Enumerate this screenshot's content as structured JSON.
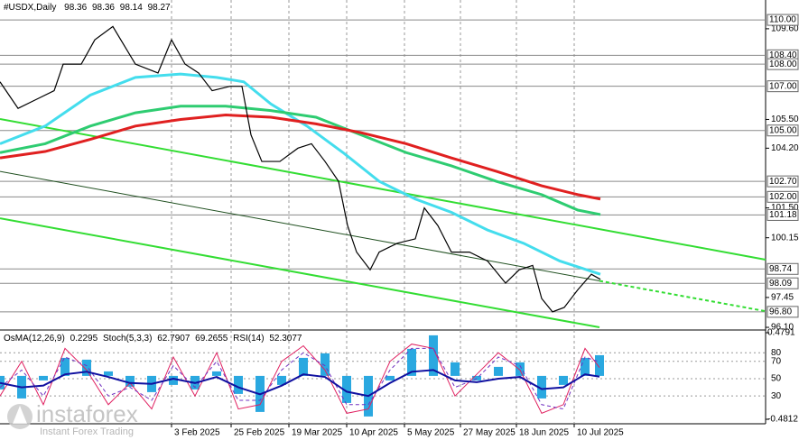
{
  "chart_data": {
    "type": "line",
    "title": "#USDX,Daily",
    "ohlc": [
      98.36,
      98.36,
      98.14,
      98.27
    ],
    "xlim": [
      0,
      212
    ],
    "xticks": [
      {
        "value": 47.5,
        "label": "3 Feb 2025"
      },
      {
        "value": 64,
        "label": "25 Feb 2025"
      },
      {
        "value": 80,
        "label": "19 Mar 2025"
      },
      {
        "value": 96,
        "label": "10 Apr 2025"
      },
      {
        "value": 112,
        "label": "5 May 2025"
      },
      {
        "value": 127.5,
        "label": "27 May 2025"
      },
      {
        "value": 143,
        "label": "18 Jun 2025"
      },
      {
        "value": 159,
        "label": "10 Jul 2025"
      }
    ],
    "ylim": [
      96.02,
      110.9
    ],
    "yticks": [
      {
        "value": 109.6,
        "label": "109.60"
      },
      {
        "value": 105.5,
        "label": "105.50"
      },
      {
        "value": 104.2,
        "label": "104.20"
      },
      {
        "value": 101.5,
        "label": "101.50"
      },
      {
        "value": 100.15,
        "label": "100.15"
      },
      {
        "value": 97.45,
        "label": "97.45"
      },
      {
        "value": 96.1,
        "label": "96.10"
      }
    ],
    "level_ticks": [
      {
        "value": 110,
        "label": "110.00"
      },
      {
        "value": 108.4,
        "label": "108.40"
      },
      {
        "value": 108,
        "label": "108.00"
      },
      {
        "value": 107,
        "label": "107.00"
      },
      {
        "value": 105,
        "label": "105.00"
      },
      {
        "value": 102.7,
        "label": "102.70"
      },
      {
        "value": 102,
        "label": "102.00"
      },
      {
        "value": 101.18,
        "label": "101.18"
      },
      {
        "value": 98.74,
        "label": "98.74"
      },
      {
        "value": 98.09,
        "label": "98.09"
      },
      {
        "value": 96.8,
        "label": "96.80"
      }
    ],
    "price": {
      "color": "#000000",
      "x": [
        0,
        5,
        10,
        15,
        17.5,
        22.5,
        26.25,
        31.25,
        37.5,
        43.75,
        47.5,
        51.25,
        55,
        58.75,
        63.75,
        67,
        69.5,
        72.5,
        77.5,
        82.5,
        86.25,
        90,
        93.75,
        96.25,
        98.75,
        102.5,
        105,
        110,
        115,
        117.5,
        121.25,
        125,
        130,
        135,
        140,
        143.75,
        147.5,
        150,
        153,
        156.25,
        160,
        163.75,
        166.25
      ],
      "values": [
        107.2,
        106.0,
        106.4,
        106.8,
        108.0,
        108.0,
        109.1,
        109.7,
        108.0,
        107.6,
        109.1,
        108.0,
        107.6,
        106.8,
        107.0,
        107.0,
        104.8,
        103.6,
        103.6,
        104.2,
        104.4,
        103.6,
        102.7,
        100.7,
        99.5,
        98.7,
        99.5,
        99.9,
        100.1,
        101.5,
        100.7,
        99.5,
        99.5,
        99.1,
        98.1,
        98.7,
        98.9,
        97.4,
        96.8,
        97.0,
        97.8,
        98.5,
        98.27
      ]
    },
    "moving_averages": [
      {
        "color": "#44dded",
        "x": [
          0,
          12.5,
          25,
          37.5,
          50,
          60,
          67.5,
          75,
          85,
          95,
          105,
          115,
          125,
          135,
          145,
          155,
          166.25
        ],
        "values": [
          104.4,
          105.2,
          106.6,
          107.4,
          107.55,
          107.4,
          107.2,
          106.2,
          105.2,
          104.0,
          102.7,
          101.9,
          101.3,
          100.5,
          99.9,
          99.1,
          98.5
        ]
      },
      {
        "color": "#2ecc71",
        "x": [
          0,
          12.5,
          25,
          37.5,
          50,
          62.5,
          75,
          87.5,
          100,
          112.5,
          125,
          137.5,
          150,
          160,
          166.25
        ],
        "values": [
          104.0,
          104.4,
          105.2,
          105.8,
          106.1,
          106.1,
          105.9,
          105.6,
          104.8,
          104.0,
          103.4,
          102.7,
          102.1,
          101.4,
          101.2
        ]
      },
      {
        "color": "#e02020",
        "x": [
          0,
          12.5,
          25,
          37.5,
          50,
          62.5,
          75,
          87.5,
          100,
          112.5,
          125,
          137.5,
          150,
          160,
          166.25
        ],
        "values": [
          103.76,
          104.05,
          104.6,
          105.2,
          105.5,
          105.7,
          105.6,
          105.3,
          104.9,
          104.4,
          103.76,
          103.15,
          102.5,
          102.1,
          101.9
        ]
      }
    ],
    "trendlines": [
      {
        "color": "#33dd33",
        "x": [
          0,
          212
        ],
        "y": [
          105.52,
          99.16
        ],
        "dash": false
      },
      {
        "color": "#33dd33",
        "x": [
          0,
          166
        ],
        "y": [
          101.03,
          96.1
        ],
        "dash": false
      },
      {
        "color": "#1f4f1f",
        "x": [
          0,
          166
        ],
        "y": [
          103.15,
          98.2
        ],
        "dash": false
      },
      {
        "color": "#33dd33",
        "x": [
          166,
          212
        ],
        "y": [
          98.2,
          96.83
        ],
        "dash": true
      }
    ],
    "indicator": {
      "osma_name": "OsMA(12,26,9)",
      "stoch_name": "Stoch(5,3,3)",
      "rsi_name": "RSI(14)",
      "x": [
        0,
        6,
        12,
        18,
        24,
        30,
        36,
        42,
        48,
        54,
        60,
        66,
        72,
        78,
        84,
        90,
        96,
        102,
        108,
        114,
        120,
        126,
        132,
        138,
        144,
        150,
        156,
        162,
        166
      ],
      "osma_lim": [
        -0.531,
        0.499
      ],
      "osc_lim": [
        -2.1,
        105.2
      ],
      "osma_ticks": [
        0.4791,
        -0.4812
      ],
      "osc_ticks": [
        80,
        70,
        50,
        30
      ],
      "osma": {
        "color": "#2aa8e0",
        "values": [
          -0.15,
          -0.25,
          -0.05,
          0.2,
          0.18,
          0.05,
          -0.12,
          -0.18,
          -0.1,
          -0.15,
          0.05,
          -0.2,
          -0.4,
          -0.1,
          0.2,
          0.25,
          -0.3,
          -0.45,
          -0.05,
          0.3,
          0.45,
          0.15,
          -0.05,
          0.1,
          0.15,
          -0.25,
          -0.1,
          0.2,
          0.2295
        ]
      },
      "stoch_main": {
        "color": "#e02060",
        "values": [
          30,
          70,
          20,
          85,
          60,
          20,
          45,
          15,
          75,
          30,
          80,
          15,
          20,
          70,
          88,
          60,
          10,
          15,
          70,
          90,
          85,
          30,
          55,
          80,
          60,
          10,
          20,
          85,
          62.7907
        ]
      },
      "stoch_signal": {
        "color": "#7030c0",
        "values": [
          40,
          60,
          30,
          75,
          65,
          30,
          40,
          25,
          65,
          40,
          70,
          25,
          25,
          60,
          80,
          65,
          20,
          20,
          60,
          85,
          85,
          40,
          50,
          75,
          65,
          20,
          15,
          75,
          69.2655
        ]
      },
      "rsi": {
        "color": "#1010a0",
        "values": [
          45,
          40,
          42,
          55,
          58,
          52,
          45,
          44,
          50,
          45,
          52,
          40,
          32,
          42,
          55,
          52,
          35,
          30,
          45,
          58,
          60,
          48,
          46,
          50,
          52,
          38,
          40,
          55,
          52.3077
        ]
      }
    },
    "logo": {
      "name": "instaforex",
      "tagline": "Instant Forex Trading"
    }
  }
}
